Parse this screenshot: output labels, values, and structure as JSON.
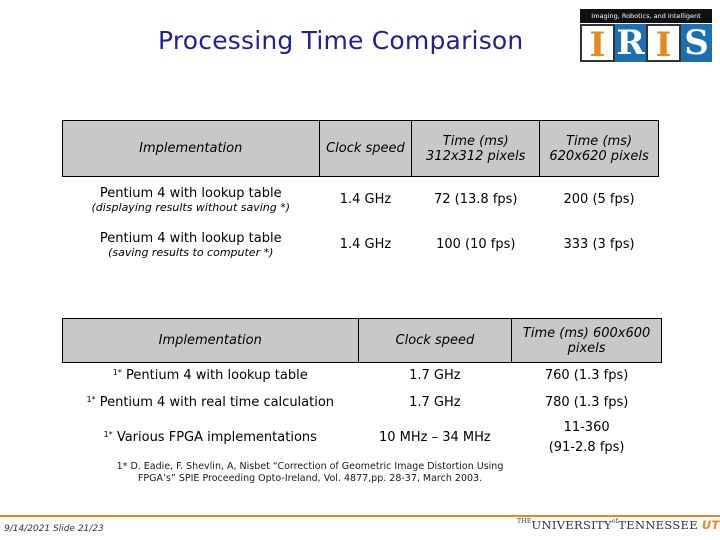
{
  "title": "Processing Time Comparison",
  "logo": {
    "caption": "Imaging, Robotics, and Intelligent Systems",
    "letters": [
      "I",
      "R",
      "I",
      "S"
    ]
  },
  "table1": {
    "headers": [
      "Implementation",
      "Clock speed",
      "Time (ms) 312x312 pixels",
      "Time (ms) 620x620 pixels"
    ],
    "rows": [
      {
        "impl": "Pentium 4 with lookup table",
        "note": "(displaying results without saving *)",
        "clock": "1.4 GHz",
        "t312": "72 (13.8 fps)",
        "t620": "200 (5 fps)"
      },
      {
        "impl": "Pentium 4 with lookup table",
        "note": "(saving results to computer *)",
        "clock": "1.4 GHz",
        "t312": "100 (10 fps)",
        "t620": "333 (3 fps)"
      }
    ]
  },
  "table2": {
    "headers": [
      "Implementation",
      "Clock speed",
      "Time (ms) 600x600 pixels"
    ],
    "rows": [
      {
        "marker": "1*",
        "impl": "Pentium 4 with lookup table",
        "clock": "1.7 GHz",
        "time": "760 (1.3 fps)"
      },
      {
        "marker": "1*",
        "impl": "Pentium 4 with real time calculation",
        "clock": "1.7 GHz",
        "time": "780 (1.3 fps)"
      },
      {
        "marker": "1*",
        "impl": "Various FPGA implementations",
        "clock": "10 MHz – 34 MHz",
        "time": "11-360 (91-2.8 fps)"
      }
    ]
  },
  "reference": {
    "line1": "1* D. Eadie, F. Shevlin, A, Nisbet “Correction of Geometric Image Distortion Using",
    "line2": "FPGA’s” SPIE Proceeding Opto-Ireland, Vol. 4877,pp. 28-37, March 2003."
  },
  "footer": {
    "date": "9/14/2021  Slide 21/23",
    "university_prefix": "THE",
    "university_main": "UNIVERSITY",
    "university_of": "of",
    "university_state": "TENNESSEE",
    "university_mark": "UT"
  }
}
